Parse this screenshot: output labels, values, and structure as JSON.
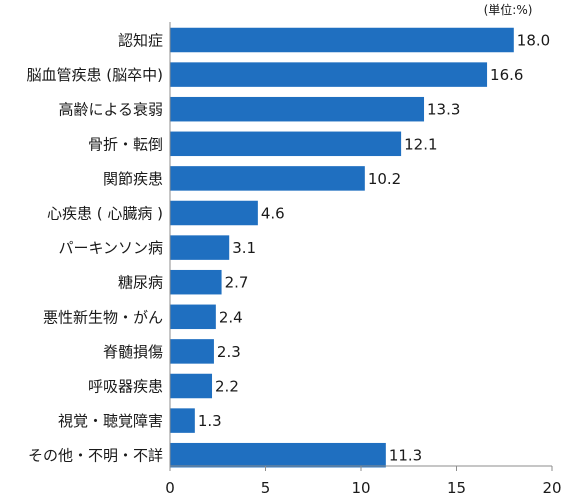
{
  "chart_data": {
    "type": "bar",
    "orientation": "horizontal",
    "unit_note": "(単位:%)",
    "categories": [
      "認知症",
      "脳血管疾患 (脳卒中)",
      "高齢による衰弱",
      "骨折・転倒",
      "関節疾患",
      "心疾患 ( 心臓病 )",
      "パーキンソン病",
      "糖尿病",
      "悪性新生物・がん",
      "脊髄損傷",
      "呼吸器疾患",
      "視覚・聴覚障害",
      "その他・不明・不詳"
    ],
    "values": [
      18.0,
      16.6,
      13.3,
      12.1,
      10.2,
      4.6,
      3.1,
      2.7,
      2.4,
      2.3,
      2.2,
      1.3,
      11.3
    ],
    "value_labels": [
      "18.0",
      "16.6",
      "13.3",
      "12.1",
      "10.2",
      "4.6",
      "3.1",
      "2.7",
      "2.4",
      "2.3",
      "2.2",
      "1.3",
      "11.3"
    ],
    "xlim": [
      0,
      20
    ],
    "xticks": [
      0,
      5,
      10,
      15,
      20
    ],
    "xtick_labels": [
      "0",
      "5",
      "10",
      "15",
      "20"
    ],
    "xlabel": "",
    "ylabel": "",
    "grid": false,
    "bar_color": "#1f6fc0",
    "axis_color": "#8c8c8c"
  }
}
